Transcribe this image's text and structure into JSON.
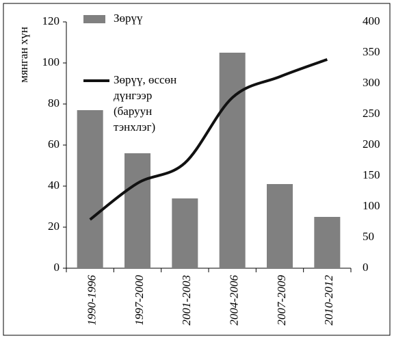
{
  "chart_data": {
    "type": "bar_line",
    "y_label": "мянган хүн",
    "categories": [
      "1990-1996",
      "1997-2000",
      "2001-2003",
      "2004-2006",
      "2007-2009",
      "2010-2012"
    ],
    "series": [
      {
        "name": "Зөрүү",
        "type": "bar",
        "color": "#808080",
        "values": [
          77,
          56,
          34,
          105,
          41,
          25
        ]
      },
      {
        "name": "Зөрүү, өссөн\nдүнгээр\n(баруун\nтэнхлэг)",
        "type": "line",
        "axis": "y2",
        "color": "#111111",
        "values": [
          79,
          138,
          171,
          277,
          311,
          339
        ]
      }
    ],
    "ylim": [
      0,
      120
    ],
    "yticks": [
      0,
      20,
      40,
      60,
      80,
      100,
      120
    ],
    "y2lim": [
      0,
      400
    ],
    "y2ticks": [
      0,
      50,
      100,
      150,
      200,
      250,
      300,
      350,
      400
    ],
    "grid": false
  }
}
